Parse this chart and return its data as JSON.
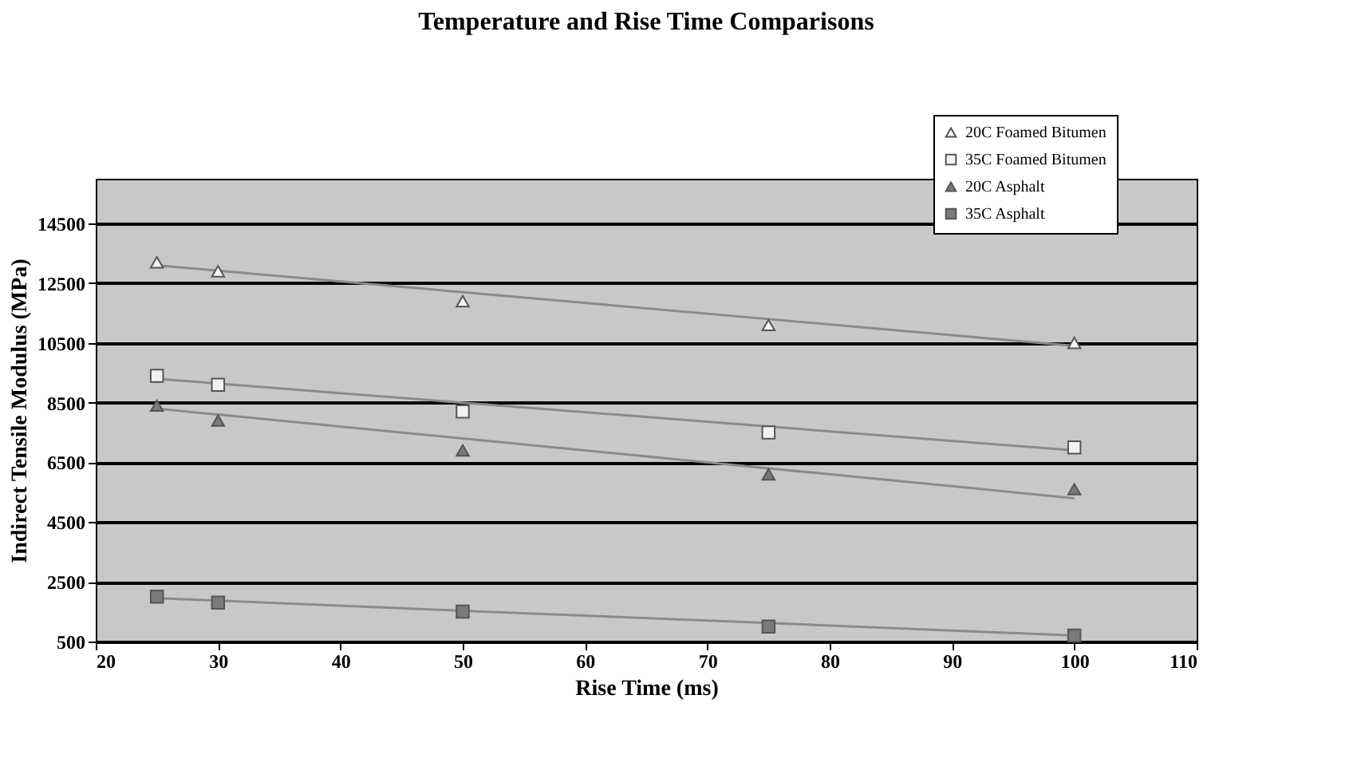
{
  "chart_data": {
    "type": "scatter",
    "title": "Temperature and Rise Time Comparisons",
    "xlabel": "Rise Time (ms)",
    "ylabel": "Indirect Tensile Modulus (MPa)",
    "x": [
      25,
      30,
      50,
      75,
      100
    ],
    "series": [
      {
        "name": "20C Foamed Bitumen",
        "color": "#f2f2f2",
        "marker": "triangle",
        "values": [
          13200,
          12900,
          11900,
          11100,
          10500
        ]
      },
      {
        "name": "35C Foamed Bitumen",
        "color": "#f2f2f2",
        "marker": "square",
        "values": [
          9400,
          9100,
          8200,
          7500,
          7000
        ]
      },
      {
        "name": "20C Asphalt",
        "color": "#7a7a7a",
        "marker": "triangle",
        "values": [
          8400,
          7900,
          6900,
          6100,
          5600
        ]
      },
      {
        "name": "35C Asphalt",
        "color": "#7a7a7a",
        "marker": "square",
        "values": [
          2000,
          1800,
          1500,
          1000,
          700
        ]
      },
      {
        "type": "line",
        "color": "#8a8a8a",
        "values": [
          13100,
          12920,
          12200,
          11300,
          10400
        ]
      },
      {
        "type": "line",
        "color": "#8a8a8a",
        "values": [
          9300,
          9140,
          8500,
          7700,
          6900
        ]
      },
      {
        "type": "line",
        "color": "#8a8a8a",
        "values": [
          8300,
          8100,
          7300,
          6300,
          5300
        ]
      },
      {
        "type": "line",
        "color": "#8a8a8a",
        "values": [
          1950,
          1870,
          1530,
          1120,
          700
        ]
      }
    ],
    "xlim": [
      20,
      110
    ],
    "xticks": [
      20,
      30,
      40,
      50,
      60,
      70,
      80,
      90,
      100,
      110
    ],
    "ylim": [
      500,
      16000
    ],
    "yticks": [
      500,
      2500,
      4500,
      6500,
      8500,
      10500,
      12500,
      14500
    ],
    "grid": "y",
    "legend": "top right"
  }
}
